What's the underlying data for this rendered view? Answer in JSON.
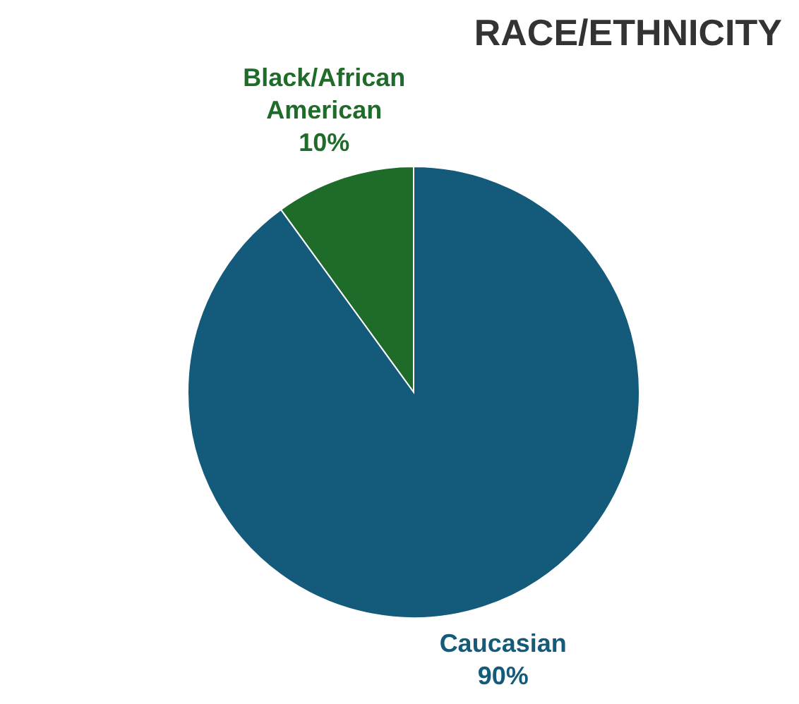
{
  "chart_data": {
    "type": "pie",
    "title": "RACE/ETHNICITY",
    "categories": [
      "Black/African American",
      "Caucasian"
    ],
    "values": [
      10,
      90
    ],
    "colors": [
      "#1e6b2a",
      "#145a7a"
    ],
    "value_labels": [
      "10%",
      "90%"
    ]
  }
}
